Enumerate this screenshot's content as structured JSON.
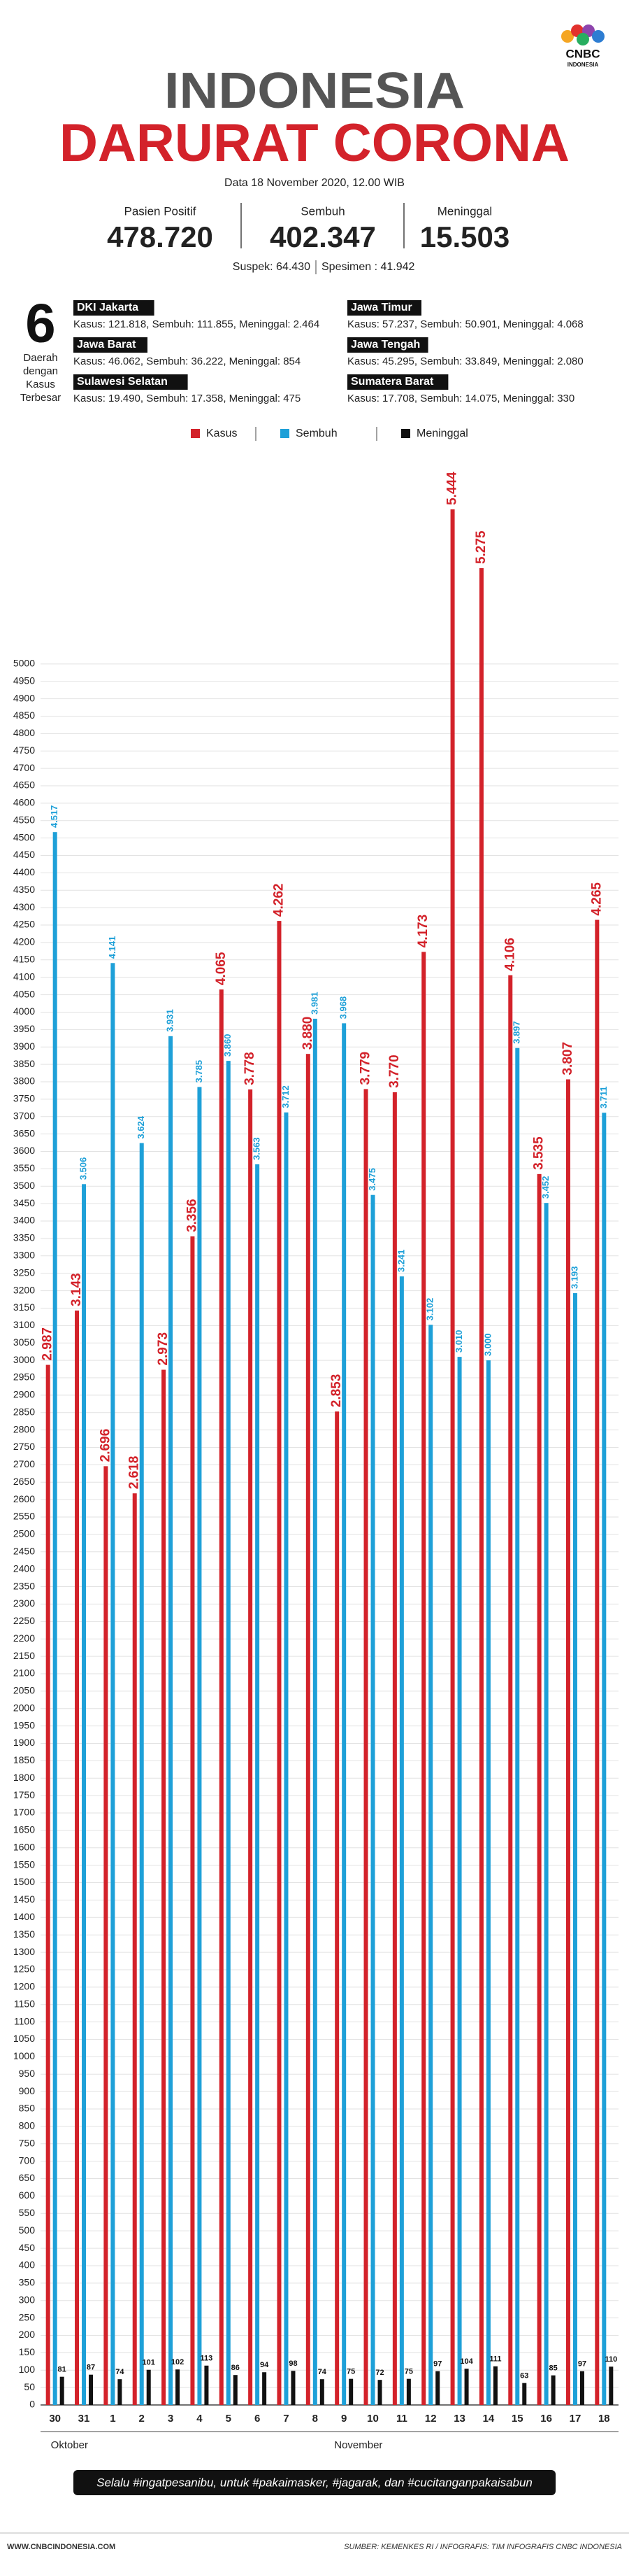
{
  "header": {
    "logo": {
      "name": "CNBC",
      "sub": "INDONESIA"
    },
    "title_line1": "INDONESIA",
    "title_line2": "DARURAT CORONA",
    "date": "Data 18 November 2020, 12.00 WIB",
    "stats": [
      {
        "label": "Pasien Positif",
        "value": "478.720"
      },
      {
        "label": "Sembuh",
        "value": "402.347"
      },
      {
        "label": "Meninggal",
        "value": "15.503"
      }
    ],
    "suspek": "Suspek: 64.430",
    "spesimen": "Spesimen : 41.942"
  },
  "regions": {
    "number": "6",
    "caption": [
      "Daerah",
      "dengan",
      "Kasus",
      "Terbesar"
    ],
    "items": [
      {
        "name": "DKI Jakarta",
        "detail": "Kasus: 121.818, Sembuh: 111.855, Meninggal: 2.464"
      },
      {
        "name": "Jawa Barat",
        "detail": "Kasus: 46.062, Sembuh: 36.222, Meninggal: 854"
      },
      {
        "name": "Sulawesi Selatan",
        "detail": "Kasus: 19.490, Sembuh: 17.358, Meninggal: 475"
      },
      {
        "name": "Jawa Timur",
        "detail": "Kasus: 57.237, Sembuh: 50.901, Meninggal: 4.068"
      },
      {
        "name": "Jawa Tengah",
        "detail": "Kasus: 45.295, Sembuh: 33.849, Meninggal: 2.080"
      },
      {
        "name": "Sumatera Barat",
        "detail": "Kasus: 17.708, Sembuh: 14.075, Meninggal: 330"
      }
    ]
  },
  "chart_data": {
    "type": "bar",
    "categories": [
      "30",
      "31",
      "1",
      "2",
      "3",
      "4",
      "5",
      "6",
      "7",
      "8",
      "9",
      "10",
      "11",
      "12",
      "13",
      "14",
      "15",
      "16",
      "17",
      "18"
    ],
    "months": [
      {
        "label": "Oktober",
        "from": 0,
        "to": 1
      },
      {
        "label": "November",
        "from": 2,
        "to": 19
      }
    ],
    "series": [
      {
        "name": "Kasus",
        "color": "#d3222a",
        "values": [
          2987,
          3143,
          2696,
          2618,
          2973,
          3356,
          4065,
          3778,
          4262,
          3880,
          2853,
          3779,
          3770,
          4173,
          5444,
          5275,
          4106,
          3535,
          3807,
          4265
        ],
        "value_labels": [
          "2.987",
          "3.143",
          "2.696",
          "2.618",
          "2.973",
          "3.356",
          "4.065",
          "3.778",
          "4.262",
          "3.880",
          "2.853",
          "3.779",
          "3.770",
          "4.173",
          "5.444",
          "5.275",
          "4.106",
          "3.535",
          "3.807",
          "4.265"
        ]
      },
      {
        "name": "Sembuh",
        "color": "#1ea0d8",
        "values": [
          4517,
          3506,
          4141,
          3624,
          3931,
          3785,
          3860,
          3563,
          3712,
          3981,
          3968,
          3475,
          3241,
          3102,
          3010,
          3000,
          3897,
          3452,
          3193,
          3711
        ],
        "value_labels": [
          "4.517",
          "3.506",
          "4.141",
          "3.624",
          "3.931",
          "3.785",
          "3.860",
          "3.563",
          "3.712",
          "3.981",
          "3.968",
          "3.475",
          "3.241",
          "3.102",
          "3.010",
          "3.000",
          "3.897",
          "3.452",
          "3.193",
          "3.711"
        ]
      },
      {
        "name": "Meninggal",
        "color": "#111111",
        "values": [
          81,
          87,
          74,
          101,
          102,
          113,
          86,
          94,
          98,
          74,
          75,
          72,
          75,
          97,
          104,
          111,
          63,
          85,
          97,
          110
        ]
      }
    ],
    "ylim": [
      0,
      5500
    ],
    "yticks": [
      0,
      50,
      100,
      150,
      200,
      250,
      300,
      350,
      400,
      450,
      500,
      550,
      600,
      650,
      700,
      750,
      800,
      850,
      900,
      950,
      1000,
      1050,
      1100,
      1150,
      1200,
      1250,
      1300,
      1350,
      1400,
      1450,
      1500,
      1550,
      1600,
      1650,
      1700,
      1750,
      1800,
      1850,
      1900,
      1950,
      2000,
      2050,
      2100,
      2150,
      2200,
      2250,
      2300,
      2350,
      2400,
      2450,
      2500,
      2550,
      2600,
      2650,
      2700,
      2750,
      2800,
      2850,
      2900,
      2950,
      3000,
      3050,
      3100,
      3150,
      3200,
      3250,
      3300,
      3350,
      3400,
      3450,
      3500,
      3550,
      3600,
      3650,
      3700,
      3750,
      3800,
      3850,
      3900,
      3950,
      4000,
      4050,
      4100,
      4150,
      4200,
      4250,
      4300,
      4350,
      4400,
      4450,
      4500,
      4550,
      4600,
      4650,
      4700,
      4750,
      4800,
      4850,
      4900,
      4950,
      5000
    ],
    "grid": true
  },
  "footer": {
    "slogan": "Selalu #ingatpesanibu, untuk #pakaimasker, #jagarak, dan #cucitanganpakaisabun",
    "site": "WWW.CNBCINDONESIA.COM",
    "source": "SUMBER: KEMENKES RI / INFOGRAFIS: TIM INFOGRAFIS CNBC INDONESIA"
  }
}
